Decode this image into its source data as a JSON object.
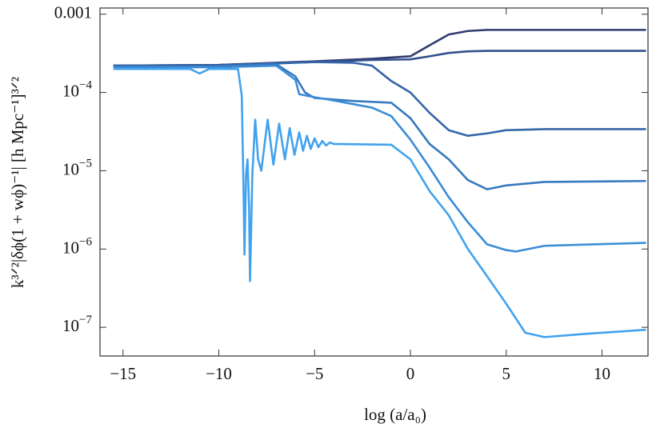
{
  "chart_data": {
    "type": "line",
    "x_label": "log (a/a₀)",
    "y_label": "k³ᐟ²|δϕ(1 + wϕ)⁻¹| [h Mpc⁻¹]³ᐟ²",
    "log_y": true,
    "xlim": [
      -16.2,
      12.4
    ],
    "ylim": [
      4.3e-08,
      0.0012
    ],
    "xticks": [
      {
        "value": -15,
        "label": "−15"
      },
      {
        "value": -10,
        "label": "−10"
      },
      {
        "value": -5,
        "label": "−5"
      },
      0,
      5,
      10
    ],
    "yticks": [
      {
        "value": 1e-07,
        "label": "10−7"
      },
      {
        "value": 1e-06,
        "label": "10−6"
      },
      {
        "value": 1e-05,
        "label": "10−5"
      },
      {
        "value": 0.0001,
        "label": "10−4"
      },
      0.001
    ],
    "series": [
      {
        "color": "#2f3b6e",
        "x": [
          -15.5,
          -10,
          -5,
          -2,
          0,
          1,
          2,
          3,
          4,
          6,
          12.3
        ],
        "values": [
          0.00022,
          0.000225,
          0.00025,
          0.00027,
          0.00029,
          0.0004,
          0.00055,
          0.00061,
          0.00063,
          0.00063,
          0.00063
        ]
      },
      {
        "color": "#33508d",
        "x": [
          -15.5,
          -10,
          -5,
          -2,
          0,
          1,
          2,
          3,
          4,
          6,
          12.3
        ],
        "values": [
          0.00022,
          0.000225,
          0.000245,
          0.00026,
          0.000265,
          0.00029,
          0.00032,
          0.000335,
          0.00034,
          0.00034,
          0.00034
        ]
      },
      {
        "color": "#3466a8",
        "x": [
          -15.5,
          -10,
          -5,
          -3,
          -2,
          -1,
          0,
          1,
          2,
          3,
          4,
          5,
          7,
          12.3
        ],
        "values": [
          0.00022,
          0.00022,
          0.000245,
          0.00024,
          0.00022,
          0.00014,
          0.0001,
          5.5e-05,
          3.3e-05,
          2.8e-05,
          3e-05,
          3.3e-05,
          3.4e-05,
          3.4e-05
        ]
      },
      {
        "color": "#3779c0",
        "x": [
          -15.5,
          -10,
          -7,
          -6,
          -5.5,
          -5,
          -3,
          -1,
          0,
          1,
          2,
          3,
          4,
          5,
          7,
          12.3
        ],
        "values": [
          0.00021,
          0.000215,
          0.00023,
          0.00016,
          0.0001,
          8.5e-05,
          7.8e-05,
          7.4e-05,
          4.7e-05,
          2.2e-05,
          1.4e-05,
          7.6e-06,
          5.8e-06,
          6.5e-06,
          7.2e-06,
          7.4e-06
        ]
      },
      {
        "color": "#3b8cd6",
        "x": [
          -15.5,
          -10,
          -7,
          -6,
          -5.8,
          -5,
          -4,
          -2,
          -1,
          0,
          1,
          2,
          3,
          4,
          5,
          5.5,
          7,
          12.3
        ],
        "values": [
          0.00021,
          0.00021,
          0.00022,
          0.000145,
          9.5e-05,
          8.7e-05,
          7.9e-05,
          6.4e-05,
          5e-05,
          2.5e-05,
          1.1e-05,
          4.6e-06,
          2.2e-06,
          1.15e-06,
          9.7e-07,
          9.3e-07,
          1.1e-06,
          1.2e-06
        ]
      },
      {
        "color": "#41a2ee",
        "x": [
          -15.5,
          -11.5,
          -11,
          -10.5,
          -9,
          -8.8,
          -8.7,
          -8.66,
          -8.58,
          -8.5,
          -8.42,
          -8.37,
          -8.25,
          -8.1,
          -7.95,
          -7.78,
          -7.45,
          -7.15,
          -6.85,
          -6.55,
          -6.3,
          -6.05,
          -5.8,
          -5.6,
          -5.4,
          -5.2,
          -5.0,
          -4.8,
          -4.6,
          -4.4,
          -4.2,
          -4.0,
          -1,
          0,
          1,
          2,
          3,
          4,
          5,
          6,
          7,
          9,
          12.3
        ],
        "values": [
          0.0002,
          0.0002,
          0.000175,
          0.0002,
          0.0002,
          9.1e-05,
          4.3e-06,
          8.5e-07,
          8.7e-06,
          1.4e-05,
          3.4e-06,
          3.9e-07,
          8.7e-06,
          4.5e-05,
          1.4e-05,
          1e-05,
          4.5e-05,
          1.2e-05,
          4e-05,
          1.4e-05,
          3.5e-05,
          1.6e-05,
          3.1e-05,
          1.8e-05,
          2.8e-05,
          1.9e-05,
          2.6e-05,
          2e-05,
          2.4e-05,
          2.1e-05,
          2.3e-05,
          2.2e-05,
          2.15e-05,
          1.4e-05,
          5.5e-06,
          2.7e-06,
          1e-06,
          4.5e-07,
          2e-07,
          8.5e-08,
          7.5e-08,
          8.2e-08,
          9.3e-08
        ]
      }
    ]
  }
}
